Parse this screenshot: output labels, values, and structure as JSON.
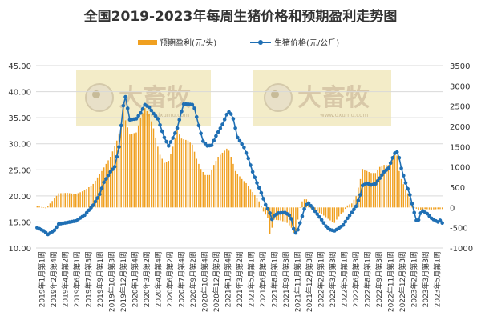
{
  "colors": {
    "profit_bar": "#f0a020",
    "price_line": "#1f6fb4",
    "grid": "#d9d9d9",
    "watermark_bg": "#f3ecc8"
  },
  "watermark": {
    "brand": "大畜牧",
    "url": "www.dxumu.com"
  },
  "chart_data": {
    "type": "bar+line",
    "title": "全国2019-2023年每周生猪价格和预期盈利走势图",
    "legend": [
      {
        "name": "预期盈利(元/头)",
        "kind": "bar"
      },
      {
        "name": "生猪价格(元/公斤)",
        "kind": "line"
      }
    ],
    "legend_position": "top-center",
    "grid": true,
    "left_axis": {
      "min": 10,
      "max": 45,
      "step": 5,
      "ticks": [
        "10.00",
        "15.00",
        "20.00",
        "25.00",
        "30.00",
        "35.00",
        "40.00",
        "45.00"
      ]
    },
    "right_axis": {
      "min": -1000,
      "max": 3500,
      "step": 500,
      "ticks": [
        "-1000",
        "-500",
        "0",
        "500",
        "1000",
        "1500",
        "2000",
        "2500",
        "3000",
        "3500"
      ]
    },
    "x_tick_labels": [
      "2019年1月第1周",
      "2019年2月第4周",
      "2019年4月第2周",
      "2019年6月第1周",
      "2019年7月第3周",
      "2019年9月第1周",
      "2019年10月第3周",
      "2019年12月第1周",
      "2020年1月第4周",
      "2020年3月第2周",
      "2020年4月第4周",
      "2020年6月第2周",
      "2020年7月第4周",
      "2020年9月第2周",
      "2020年10月第4周",
      "2020年12月第2周",
      "2021年1月第4周",
      "2021年3月第2周",
      "2021年5月第1周",
      "2021年6月第3周",
      "2021年8月第1周",
      "2021年9月第3周",
      "2021年11月第1周",
      "2021年12月第3周",
      "2022年2月第1周",
      "2022年3月第3周",
      "2022年5月第1周",
      "2022年6月第3周",
      "2022年8月第1周",
      "2022年9月第3周",
      "2022年11月第1周",
      "2022年12月第3周",
      "2023年2月第1周",
      "2023年3月第3周",
      "2023年5月第1周"
    ],
    "price_keypoints": [
      [
        0,
        13.9
      ],
      [
        3,
        13.3
      ],
      [
        5,
        12.6
      ],
      [
        8,
        13.4
      ],
      [
        10,
        14.6
      ],
      [
        14,
        14.9
      ],
      [
        18,
        15.2
      ],
      [
        22,
        16.3
      ],
      [
        26,
        18.2
      ],
      [
        29,
        20.3
      ],
      [
        31,
        22.6
      ],
      [
        34,
        24.6
      ],
      [
        36,
        25.6
      ],
      [
        38,
        29.4
      ],
      [
        39,
        33.5
      ],
      [
        40,
        37.3
      ],
      [
        41,
        39.0
      ],
      [
        42,
        36.8
      ],
      [
        43,
        34.6
      ],
      [
        46,
        34.8
      ],
      [
        48,
        35.9
      ],
      [
        50,
        37.5
      ],
      [
        52,
        37.0
      ],
      [
        54,
        35.8
      ],
      [
        56,
        34.8
      ],
      [
        57,
        33.6
      ],
      [
        59,
        31.2
      ],
      [
        61,
        29.6
      ],
      [
        63,
        31.1
      ],
      [
        65,
        33.0
      ],
      [
        67,
        36.2
      ],
      [
        68,
        37.6
      ],
      [
        70,
        37.6
      ],
      [
        72,
        37.5
      ],
      [
        73,
        36.8
      ],
      [
        75,
        33.5
      ],
      [
        77,
        30.5
      ],
      [
        79,
        29.6
      ],
      [
        81,
        29.7
      ],
      [
        83,
        31.5
      ],
      [
        86,
        33.7
      ],
      [
        88,
        35.6
      ],
      [
        89,
        36.1
      ],
      [
        90,
        35.7
      ],
      [
        91,
        34.8
      ],
      [
        93,
        31.2
      ],
      [
        96,
        29.3
      ],
      [
        98,
        27.2
      ],
      [
        100,
        24.6
      ],
      [
        102,
        22.5
      ],
      [
        104,
        20.6
      ],
      [
        106,
        18.3
      ],
      [
        108,
        16.7
      ],
      [
        109,
        15.5
      ],
      [
        110,
        16.2
      ],
      [
        112,
        16.7
      ],
      [
        115,
        16.8
      ],
      [
        117,
        16.3
      ],
      [
        118,
        15.6
      ],
      [
        119,
        13.7
      ],
      [
        120,
        12.9
      ],
      [
        121,
        13.5
      ],
      [
        123,
        16.1
      ],
      [
        124,
        17.5
      ],
      [
        125,
        18.3
      ],
      [
        126,
        18.6
      ],
      [
        128,
        17.6
      ],
      [
        130,
        16.5
      ],
      [
        132,
        15.4
      ],
      [
        134,
        14.2
      ],
      [
        136,
        13.5
      ],
      [
        138,
        13.3
      ],
      [
        140,
        13.8
      ],
      [
        142,
        14.4
      ],
      [
        144,
        15.7
      ],
      [
        146,
        16.8
      ],
      [
        148,
        18.0
      ],
      [
        150,
        20.2
      ],
      [
        151,
        22.0
      ],
      [
        153,
        22.4
      ],
      [
        155,
        22.1
      ],
      [
        157,
        22.3
      ],
      [
        159,
        23.4
      ],
      [
        161,
        24.6
      ],
      [
        163,
        25.3
      ],
      [
        165,
        27.3
      ],
      [
        166,
        28.2
      ],
      [
        167,
        28.4
      ],
      [
        168,
        27.3
      ],
      [
        169,
        25.3
      ],
      [
        171,
        22.5
      ],
      [
        173,
        20.2
      ],
      [
        174,
        18.5
      ],
      [
        175,
        16.8
      ],
      [
        176,
        15.3
      ],
      [
        177,
        15.4
      ],
      [
        178,
        16.7
      ],
      [
        179,
        17.1
      ],
      [
        181,
        16.6
      ],
      [
        183,
        15.7
      ],
      [
        185,
        15.2
      ],
      [
        186,
        15.0
      ],
      [
        187,
        15.3
      ],
      [
        188,
        14.8
      ]
    ],
    "profit_keypoints": [
      [
        0,
        40
      ],
      [
        4,
        -20
      ],
      [
        7,
        160
      ],
      [
        10,
        350
      ],
      [
        14,
        360
      ],
      [
        18,
        330
      ],
      [
        22,
        420
      ],
      [
        26,
        580
      ],
      [
        30,
        900
      ],
      [
        34,
        1250
      ],
      [
        37,
        1650
      ],
      [
        39,
        2000
      ],
      [
        40,
        2500
      ],
      [
        41,
        2150
      ],
      [
        43,
        1800
      ],
      [
        46,
        1850
      ],
      [
        48,
        2200
      ],
      [
        50,
        2450
      ],
      [
        52,
        2300
      ],
      [
        54,
        1950
      ],
      [
        56,
        1500
      ],
      [
        57,
        1300
      ],
      [
        59,
        1100
      ],
      [
        61,
        1150
      ],
      [
        63,
        1500
      ],
      [
        65,
        1900
      ],
      [
        67,
        1700
      ],
      [
        70,
        1650
      ],
      [
        72,
        1550
      ],
      [
        74,
        1200
      ],
      [
        76,
        950
      ],
      [
        78,
        800
      ],
      [
        80,
        800
      ],
      [
        82,
        1050
      ],
      [
        84,
        1250
      ],
      [
        86,
        1350
      ],
      [
        88,
        1450
      ],
      [
        89,
        1400
      ],
      [
        90,
        1250
      ],
      [
        92,
        900
      ],
      [
        95,
        700
      ],
      [
        97,
        600
      ],
      [
        100,
        380
      ],
      [
        103,
        150
      ],
      [
        105,
        -100
      ],
      [
        107,
        -250
      ],
      [
        108,
        -650
      ],
      [
        109,
        -500
      ],
      [
        110,
        -300
      ],
      [
        113,
        -320
      ],
      [
        116,
        -380
      ],
      [
        118,
        -500
      ],
      [
        119,
        -620
      ],
      [
        120,
        -600
      ],
      [
        121,
        -300
      ],
      [
        122,
        0
      ],
      [
        123,
        150
      ],
      [
        124,
        200
      ],
      [
        125,
        200
      ],
      [
        127,
        -20
      ],
      [
        130,
        -100
      ],
      [
        133,
        -200
      ],
      [
        136,
        -320
      ],
      [
        138,
        -380
      ],
      [
        140,
        -220
      ],
      [
        142,
        -120
      ],
      [
        144,
        50
      ],
      [
        146,
        100
      ],
      [
        148,
        280
      ],
      [
        150,
        700
      ],
      [
        151,
        950
      ],
      [
        153,
        900
      ],
      [
        155,
        850
      ],
      [
        157,
        850
      ],
      [
        159,
        1000
      ],
      [
        161,
        1050
      ],
      [
        163,
        1050
      ],
      [
        165,
        1200
      ],
      [
        166,
        1300
      ],
      [
        167,
        1280
      ],
      [
        168,
        900
      ],
      [
        169,
        700
      ],
      [
        171,
        450
      ],
      [
        173,
        250
      ],
      [
        175,
        0
      ],
      [
        177,
        -60
      ],
      [
        180,
        -40
      ],
      [
        183,
        -50
      ],
      [
        186,
        -40
      ],
      [
        188,
        -40
      ]
    ],
    "n_weeks": 189
  }
}
